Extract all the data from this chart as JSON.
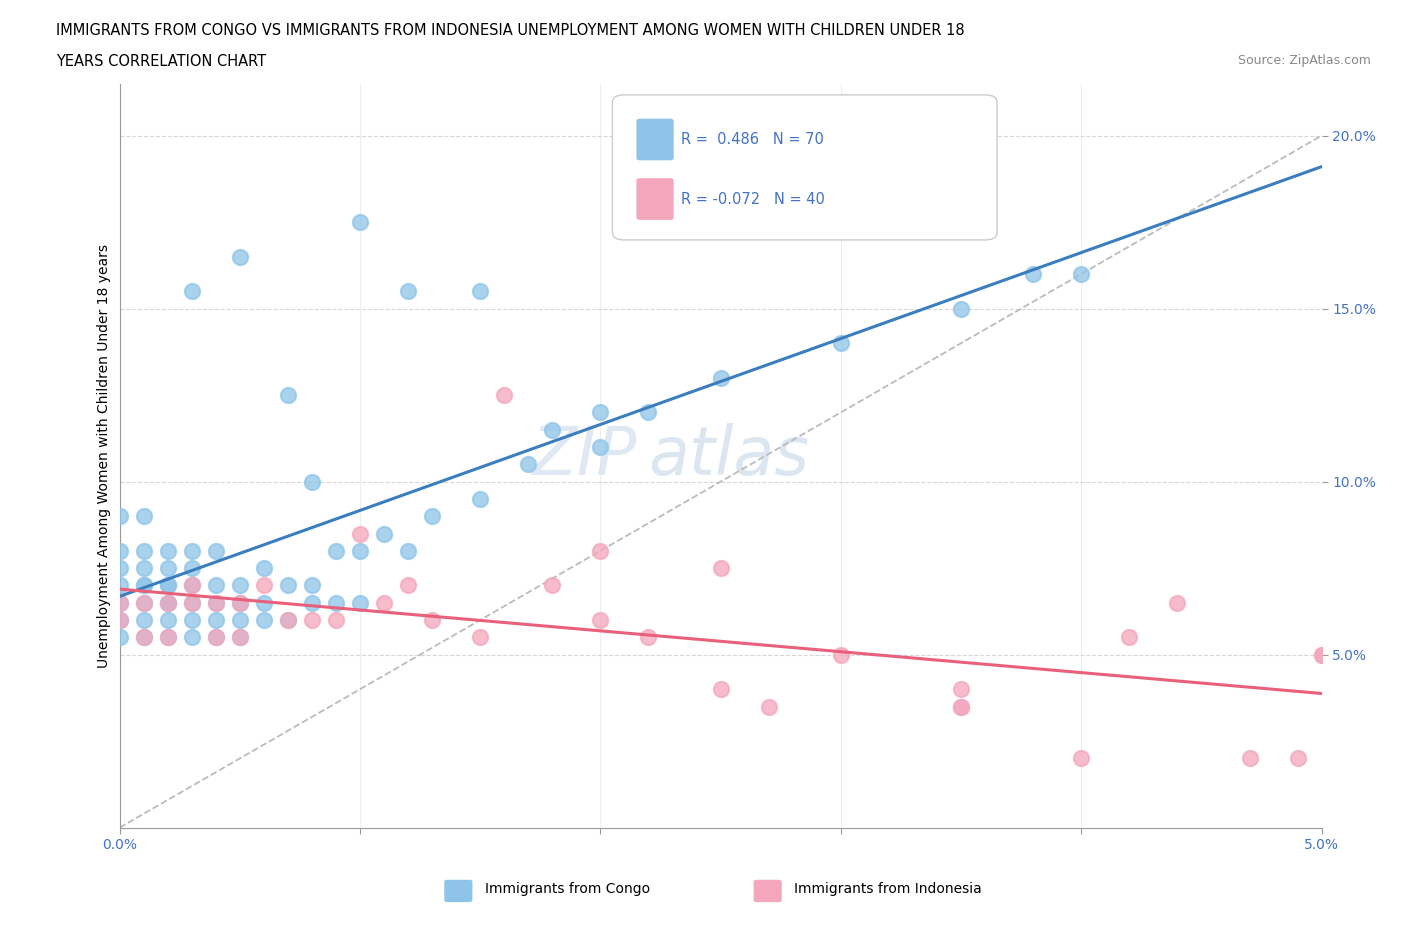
{
  "title_line1": "IMMIGRANTS FROM CONGO VS IMMIGRANTS FROM INDONESIA UNEMPLOYMENT AMONG WOMEN WITH CHILDREN UNDER 18",
  "title_line2": "YEARS CORRELATION CHART",
  "source_text": "Source: ZipAtlas.com",
  "ylabel": "Unemployment Among Women with Children Under 18 years",
  "xlim": [
    0.0,
    0.05
  ],
  "ylim": [
    0.0,
    0.21
  ],
  "congo_R": 0.486,
  "congo_N": 70,
  "indonesia_R": -0.072,
  "indonesia_N": 40,
  "congo_color": "#8ec4e8",
  "indonesia_color": "#f4a6bc",
  "congo_line_color": "#3a7ebf",
  "indonesia_line_color": "#e8607a",
  "trendline_dashed_color": "#bbbbbb",
  "tick_color": "#4472C4",
  "watermark_color": "#c8d8ea",
  "congo_x": [
    0.0,
    0.0,
    0.0,
    0.0,
    0.0,
    0.0,
    0.0,
    0.001,
    0.001,
    0.001,
    0.001,
    0.001,
    0.001,
    0.001,
    0.001,
    0.002,
    0.002,
    0.002,
    0.002,
    0.002,
    0.002,
    0.002,
    0.002,
    0.003,
    0.003,
    0.003,
    0.003,
    0.003,
    0.003,
    0.004,
    0.004,
    0.004,
    0.004,
    0.004,
    0.005,
    0.005,
    0.005,
    0.005,
    0.006,
    0.006,
    0.006,
    0.007,
    0.007,
    0.008,
    0.008,
    0.009,
    0.009,
    0.01,
    0.01,
    0.011,
    0.012,
    0.013,
    0.015,
    0.017,
    0.018,
    0.02,
    0.022,
    0.005,
    0.008,
    0.01,
    0.025,
    0.03,
    0.035,
    0.038,
    0.04,
    0.02,
    0.015,
    0.012,
    0.007,
    0.003
  ],
  "congo_y": [
    0.055,
    0.06,
    0.065,
    0.07,
    0.075,
    0.08,
    0.09,
    0.055,
    0.06,
    0.065,
    0.07,
    0.07,
    0.075,
    0.08,
    0.09,
    0.055,
    0.06,
    0.065,
    0.065,
    0.07,
    0.07,
    0.075,
    0.08,
    0.055,
    0.06,
    0.065,
    0.07,
    0.075,
    0.08,
    0.055,
    0.06,
    0.065,
    0.07,
    0.08,
    0.055,
    0.06,
    0.065,
    0.07,
    0.06,
    0.065,
    0.075,
    0.06,
    0.07,
    0.065,
    0.07,
    0.065,
    0.08,
    0.065,
    0.08,
    0.085,
    0.08,
    0.09,
    0.095,
    0.105,
    0.115,
    0.12,
    0.12,
    0.165,
    0.1,
    0.175,
    0.13,
    0.14,
    0.15,
    0.16,
    0.16,
    0.11,
    0.155,
    0.155,
    0.125,
    0.155
  ],
  "indonesia_x": [
    0.0,
    0.0,
    0.001,
    0.001,
    0.002,
    0.002,
    0.003,
    0.003,
    0.004,
    0.004,
    0.005,
    0.005,
    0.006,
    0.007,
    0.008,
    0.009,
    0.01,
    0.011,
    0.012,
    0.013,
    0.015,
    0.016,
    0.018,
    0.02,
    0.022,
    0.025,
    0.027,
    0.03,
    0.035,
    0.04,
    0.042,
    0.044,
    0.047,
    0.049,
    0.02,
    0.025,
    0.05,
    0.05,
    0.035,
    0.035
  ],
  "indonesia_y": [
    0.06,
    0.065,
    0.055,
    0.065,
    0.055,
    0.065,
    0.065,
    0.07,
    0.055,
    0.065,
    0.055,
    0.065,
    0.07,
    0.06,
    0.06,
    0.06,
    0.085,
    0.065,
    0.07,
    0.06,
    0.055,
    0.125,
    0.07,
    0.08,
    0.055,
    0.04,
    0.035,
    0.05,
    0.035,
    0.02,
    0.055,
    0.065,
    0.02,
    0.02,
    0.06,
    0.075,
    0.05,
    0.05,
    0.04,
    0.035
  ]
}
